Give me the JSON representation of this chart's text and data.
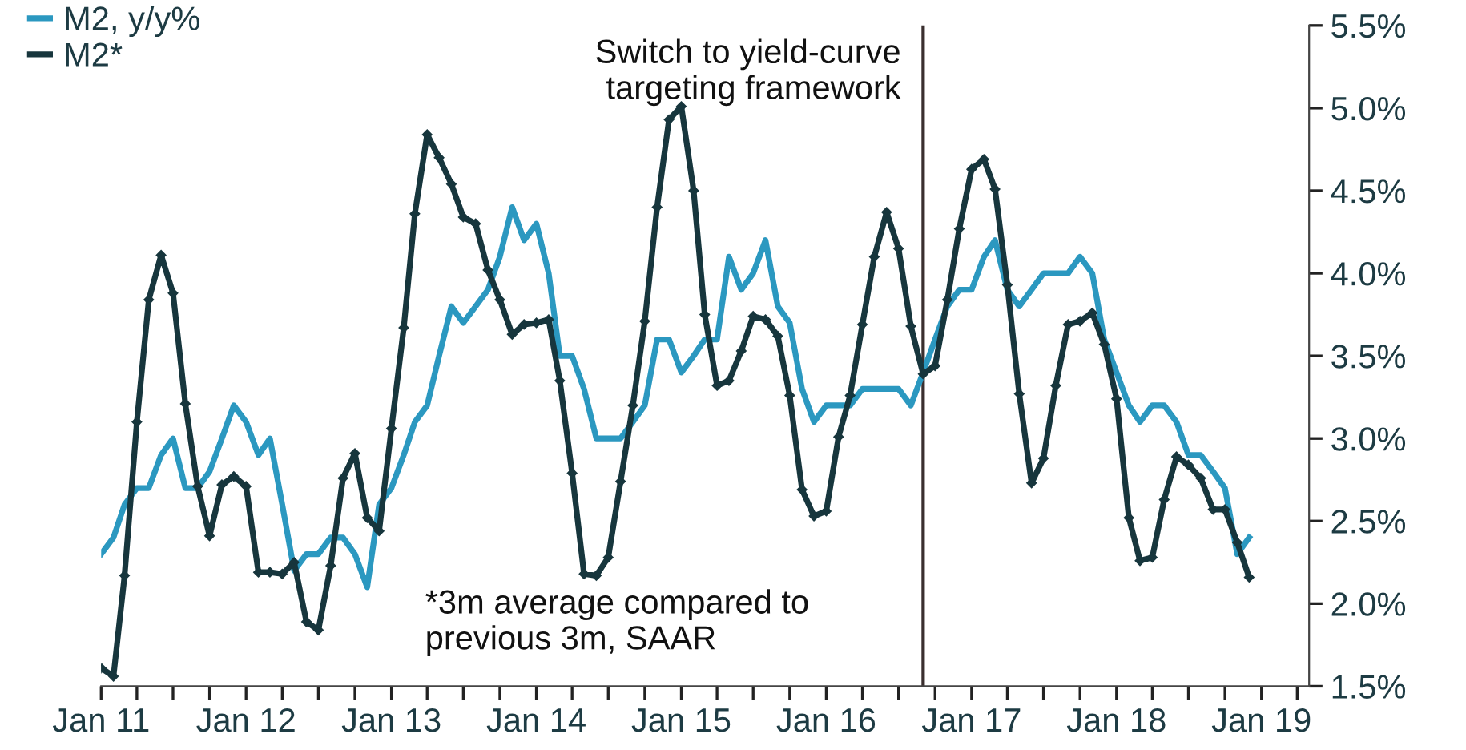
{
  "chart_data": {
    "type": "line",
    "annotations": [
      {
        "text": "Switch to yield-curve targeting framework",
        "x": "2016-09",
        "y": 5.5
      },
      "*3m average compared to previous 3m, SAAR"
    ],
    "x": [
      "2011-01",
      "2011-02",
      "2011-03",
      "2011-04",
      "2011-05",
      "2011-06",
      "2011-07",
      "2011-08",
      "2011-09",
      "2011-10",
      "2011-11",
      "2011-12",
      "2012-01",
      "2012-02",
      "2012-03",
      "2012-04",
      "2012-05",
      "2012-06",
      "2012-07",
      "2012-08",
      "2012-09",
      "2012-10",
      "2012-11",
      "2012-12",
      "2013-01",
      "2013-02",
      "2013-03",
      "2013-04",
      "2013-05",
      "2013-06",
      "2013-07",
      "2013-08",
      "2013-09",
      "2013-10",
      "2013-11",
      "2013-12",
      "2014-01",
      "2014-02",
      "2014-03",
      "2014-04",
      "2014-05",
      "2014-06",
      "2014-07",
      "2014-08",
      "2014-09",
      "2014-10",
      "2014-11",
      "2014-12",
      "2015-01",
      "2015-02",
      "2015-03",
      "2015-04",
      "2015-05",
      "2015-06",
      "2015-07",
      "2015-08",
      "2015-09",
      "2015-10",
      "2015-11",
      "2015-12",
      "2016-01",
      "2016-02",
      "2016-03",
      "2016-04",
      "2016-05",
      "2016-06",
      "2016-07",
      "2016-08",
      "2016-09",
      "2016-10",
      "2016-11",
      "2016-12",
      "2017-01",
      "2017-02",
      "2017-03",
      "2017-04",
      "2017-05",
      "2017-06",
      "2017-07",
      "2017-08",
      "2017-09",
      "2017-10",
      "2017-11",
      "2017-12",
      "2018-01",
      "2018-02",
      "2018-03",
      "2018-04",
      "2018-05",
      "2018-06",
      "2018-07",
      "2018-08",
      "2018-09",
      "2018-10",
      "2018-11",
      "2018-12"
    ],
    "series": [
      {
        "name": "M2, y/y%",
        "color": "#2b98c0",
        "marker": "none",
        "values": [
          2.3,
          2.4,
          2.6,
          2.7,
          2.7,
          2.9,
          3.0,
          2.7,
          2.7,
          2.8,
          3.0,
          3.2,
          3.1,
          2.9,
          3.0,
          2.6,
          2.2,
          2.3,
          2.3,
          2.4,
          2.4,
          2.3,
          2.1,
          2.6,
          2.7,
          2.9,
          3.1,
          3.2,
          3.5,
          3.8,
          3.7,
          3.8,
          3.9,
          4.1,
          4.4,
          4.2,
          4.3,
          4.0,
          3.5,
          3.5,
          3.3,
          3.0,
          3.0,
          3.0,
          3.1,
          3.2,
          3.6,
          3.6,
          3.4,
          3.5,
          3.6,
          3.6,
          4.1,
          3.9,
          4.0,
          4.2,
          3.8,
          3.7,
          3.3,
          3.1,
          3.2,
          3.2,
          3.2,
          3.3,
          3.3,
          3.3,
          3.3,
          3.2,
          3.4,
          3.6,
          3.8,
          3.9,
          3.9,
          4.1,
          4.2,
          3.9,
          3.8,
          3.9,
          4.0,
          4.0,
          4.0,
          4.1,
          4.0,
          3.6,
          3.4,
          3.2,
          3.1,
          3.2,
          3.2,
          3.1,
          2.9,
          2.9,
          2.8,
          2.7,
          2.3,
          2.4
        ]
      },
      {
        "name": "M2*",
        "color": "#17363d",
        "marker": "diamond",
        "values": [
          1.61,
          1.56,
          2.17,
          3.1,
          3.84,
          4.11,
          3.88,
          3.21,
          2.71,
          2.41,
          2.72,
          2.77,
          2.71,
          2.19,
          2.19,
          2.18,
          2.25,
          1.89,
          1.84,
          2.23,
          2.76,
          2.91,
          2.52,
          2.44,
          3.06,
          3.67,
          4.36,
          4.84,
          4.7,
          4.54,
          4.34,
          4.3,
          4.02,
          3.84,
          3.63,
          3.69,
          3.7,
          3.72,
          3.35,
          2.79,
          2.18,
          2.17,
          2.28,
          2.74,
          3.2,
          3.71,
          4.4,
          4.93,
          5.01,
          4.5,
          3.75,
          3.32,
          3.35,
          3.53,
          3.74,
          3.72,
          3.62,
          3.26,
          2.69,
          2.53,
          2.56,
          3.01,
          3.26,
          3.69,
          4.1,
          4.37,
          4.15,
          3.68,
          3.39,
          3.44,
          3.84,
          4.27,
          4.63,
          4.69,
          4.51,
          3.93,
          3.27,
          2.73,
          2.88,
          3.32,
          3.69,
          3.71,
          3.76,
          3.57,
          3.24,
          2.52,
          2.26,
          2.28,
          2.63,
          2.89,
          2.84,
          2.76,
          2.57,
          2.57,
          2.37,
          2.16
        ]
      }
    ],
    "xlim": [
      "2011-01",
      "2019-05"
    ],
    "xticks": [
      {
        "value": "2011-01",
        "label": "Jan 11"
      },
      {
        "value": "2011-04",
        "label": null
      },
      {
        "value": "2011-07",
        "label": null
      },
      {
        "value": "2011-10",
        "label": null
      },
      {
        "value": "2012-01",
        "label": "Jan 12"
      },
      {
        "value": "2012-04",
        "label": null
      },
      {
        "value": "2012-07",
        "label": null
      },
      {
        "value": "2012-10",
        "label": null
      },
      {
        "value": "2013-01",
        "label": "Jan 13"
      },
      {
        "value": "2013-04",
        "label": null
      },
      {
        "value": "2013-07",
        "label": null
      },
      {
        "value": "2013-10",
        "label": null
      },
      {
        "value": "2014-01",
        "label": "Jan 14"
      },
      {
        "value": "2014-04",
        "label": null
      },
      {
        "value": "2014-07",
        "label": null
      },
      {
        "value": "2014-10",
        "label": null
      },
      {
        "value": "2015-01",
        "label": "Jan 15"
      },
      {
        "value": "2015-04",
        "label": null
      },
      {
        "value": "2015-07",
        "label": null
      },
      {
        "value": "2015-10",
        "label": null
      },
      {
        "value": "2016-01",
        "label": "Jan 16"
      },
      {
        "value": "2016-04",
        "label": null
      },
      {
        "value": "2016-07",
        "label": null
      },
      {
        "value": "2016-10",
        "label": null
      },
      {
        "value": "2017-01",
        "label": "Jan 17"
      },
      {
        "value": "2017-04",
        "label": null
      },
      {
        "value": "2017-07",
        "label": null
      },
      {
        "value": "2017-10",
        "label": null
      },
      {
        "value": "2018-01",
        "label": "Jan 18"
      },
      {
        "value": "2018-04",
        "label": null
      },
      {
        "value": "2018-07",
        "label": null
      },
      {
        "value": "2018-10",
        "label": null
      },
      {
        "value": "2019-01",
        "label": "Jan 19"
      },
      {
        "value": "2019-04",
        "label": null
      }
    ],
    "ylim": [
      1.5,
      5.5
    ],
    "yticks": [
      {
        "value": 1.5,
        "label": "1.5%"
      },
      {
        "value": 2.0,
        "label": "2.0%"
      },
      {
        "value": 2.5,
        "label": "2.5%"
      },
      {
        "value": 3.0,
        "label": "3.0%"
      },
      {
        "value": 3.5,
        "label": "3.5%"
      },
      {
        "value": 4.0,
        "label": "4.0%"
      },
      {
        "value": 4.5,
        "label": "4.5%"
      },
      {
        "value": 5.0,
        "label": "5.0%"
      },
      {
        "value": 5.5,
        "label": "5.5%"
      }
    ],
    "ref_lines": [
      {
        "axis": "x",
        "value": "2016-09",
        "color": "#3a2f2f",
        "line_style": "solid"
      }
    ],
    "grid": false,
    "legend": "top left",
    "line_style": "solid"
  }
}
